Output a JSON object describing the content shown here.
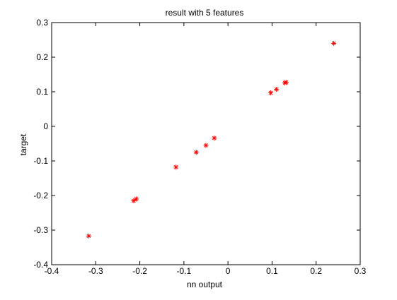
{
  "chart_data": {
    "type": "scatter",
    "title": "result with 5 features",
    "xlabel": "nn output",
    "ylabel": "target",
    "xlim": [
      -0.4,
      0.3
    ],
    "ylim": [
      -0.4,
      0.3
    ],
    "x_ticks": [
      -0.4,
      -0.3,
      -0.2,
      -0.1,
      0,
      0.1,
      0.2,
      0.3
    ],
    "y_ticks": [
      -0.4,
      -0.3,
      -0.2,
      -0.1,
      0,
      0.1,
      0.2,
      0.3
    ],
    "x_tick_labels": [
      "-0.4",
      "-0.3",
      "-0.2",
      "-0.1",
      "0",
      "0.1",
      "0.2",
      "0.3"
    ],
    "y_tick_labels": [
      "-0.4",
      "-0.3",
      "-0.2",
      "-0.1",
      "0",
      "0.1",
      "0.2",
      "0.3"
    ],
    "grid": false,
    "marker": "asterisk",
    "marker_color": "#ff0000",
    "series": [
      {
        "points": [
          {
            "x": -0.316,
            "y": -0.317
          },
          {
            "x": -0.214,
            "y": -0.215
          },
          {
            "x": -0.208,
            "y": -0.21
          },
          {
            "x": -0.118,
            "y": -0.118
          },
          {
            "x": -0.072,
            "y": -0.075
          },
          {
            "x": -0.05,
            "y": -0.055
          },
          {
            "x": -0.031,
            "y": -0.034
          },
          {
            "x": 0.097,
            "y": 0.097
          },
          {
            "x": 0.11,
            "y": 0.107
          },
          {
            "x": 0.129,
            "y": 0.126
          },
          {
            "x": 0.132,
            "y": 0.127
          },
          {
            "x": 0.24,
            "y": 0.24
          }
        ]
      }
    ]
  }
}
